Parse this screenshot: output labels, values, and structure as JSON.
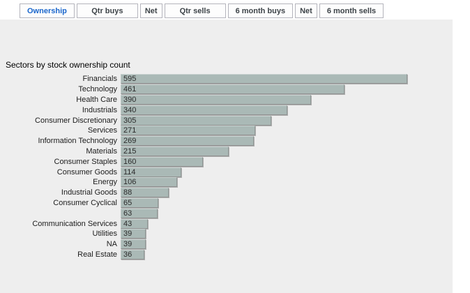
{
  "tabs": [
    {
      "label": "Ownership",
      "active": true
    },
    {
      "label": "Qtr buys",
      "active": false
    },
    {
      "label": "Net",
      "active": false
    },
    {
      "label": "Qtr sells",
      "active": false
    },
    {
      "label": "6 month buys",
      "active": false
    },
    {
      "label": "Net",
      "active": false
    },
    {
      "label": "6 month sells",
      "active": false
    }
  ],
  "colors": {
    "active_tab_text": "#1a66cc",
    "tab_text": "#3d4348",
    "tab_border": "#b4b4bc",
    "panel_background": "#eeeeee",
    "bar_fill": "#aab9b6",
    "bar_shadow": "#999999",
    "label_text": "#1c1c1c"
  },
  "chart_data": {
    "type": "bar",
    "orientation": "horizontal",
    "title": "Sectors by stock ownership count",
    "categories": [
      "Financials",
      "Technology",
      "Health Care",
      "Industrials",
      "Consumer Discretionary",
      "Services",
      "Information Technology",
      "Materials",
      "Consumer Staples",
      "Consumer Goods",
      "Energy",
      "Industrial Goods",
      "Consumer Cyclical",
      "",
      "Communication Services",
      "Utilities",
      "NA",
      "Real Estate"
    ],
    "values": [
      595,
      461,
      390,
      340,
      305,
      271,
      269,
      215,
      160,
      114,
      106,
      88,
      65,
      63,
      43,
      39,
      39,
      36
    ],
    "value_labels_shown": true,
    "xlim": [
      0,
      620
    ],
    "grid": false,
    "legend": false
  }
}
